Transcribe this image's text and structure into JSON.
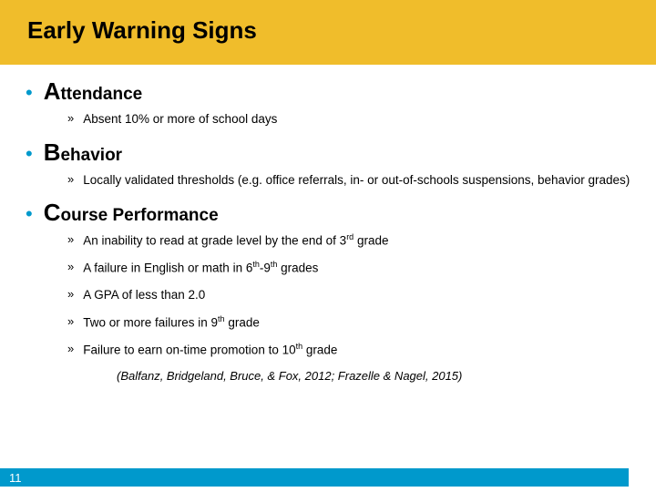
{
  "colors": {
    "title_bg": "#f0bd2b",
    "accent": "#0099cc",
    "text": "#000000",
    "footer_text": "#ffffff",
    "page_bg": "#ffffff"
  },
  "typography": {
    "title_fontsize": 26,
    "heading_big_fontsize": 26,
    "heading_rest_fontsize": 19,
    "sub_fontsize": 13.5,
    "citation_fontsize": 13,
    "footer_fontsize": 13
  },
  "title": "Early Warning Signs",
  "sections": [
    {
      "big": "A",
      "rest": "ttendance",
      "subs": [
        {
          "text": "Absent 10% or more of school days"
        }
      ]
    },
    {
      "big": "B",
      "rest": "ehavior",
      "subs": [
        {
          "text": "Locally validated thresholds (e.g. office referrals, in- or out-of-schools suspensions, behavior grades)"
        }
      ]
    },
    {
      "big": "C",
      "rest": "ourse Performance",
      "subs": [
        {
          "text": "An inability to read at grade level by the end of 3",
          "sup": "rd",
          "tail": " grade"
        },
        {
          "text": "A failure in English or math in 6",
          "sup": "th",
          "tail": "-9",
          "sup2": "th",
          "tail2": " grades"
        },
        {
          "text": "A GPA of less than 2.0"
        },
        {
          "text": "Two or more failures in 9",
          "sup": "th",
          "tail": " grade"
        },
        {
          "text": "Failure to earn on-time promotion to 10",
          "sup": "th",
          "tail": " grade"
        }
      ]
    }
  ],
  "citation": "(Balfanz, Bridgeland, Bruce, & Fox, 2012; Frazelle & Nagel, 2015)",
  "page_number": "11"
}
